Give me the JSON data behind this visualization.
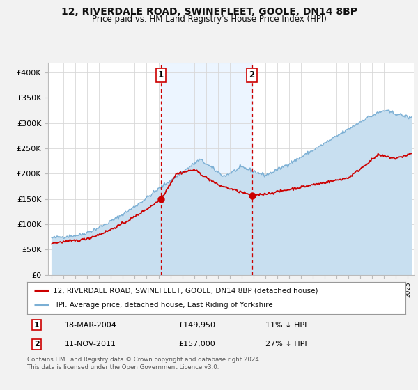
{
  "title": "12, RIVERDALE ROAD, SWINEFLEET, GOOLE, DN14 8BP",
  "subtitle": "Price paid vs. HM Land Registry's House Price Index (HPI)",
  "hpi_label": "HPI: Average price, detached house, East Riding of Yorkshire",
  "property_label": "12, RIVERDALE ROAD, SWINEFLEET, GOOLE, DN14 8BP (detached house)",
  "property_color": "#cc0000",
  "hpi_color": "#7bafd4",
  "hpi_fill_color": "#c8dff0",
  "shaded_color": "#ddeeff",
  "background_color": "#f2f2f2",
  "plot_bg_color": "#ffffff",
  "sale1_date": 2004.21,
  "sale1_price": 149950,
  "sale2_date": 2011.87,
  "sale2_price": 157000,
  "sale1_text": "18-MAR-2004",
  "sale1_price_text": "£149,950",
  "sale1_hpi_diff": "11% ↓ HPI",
  "sale2_text": "11-NOV-2011",
  "sale2_price_text": "£157,000",
  "sale2_hpi_diff": "27% ↓ HPI",
  "ylim": [
    0,
    420000
  ],
  "yticks": [
    0,
    50000,
    100000,
    150000,
    200000,
    250000,
    300000,
    350000,
    400000
  ],
  "ytick_labels": [
    "£0",
    "£50K",
    "£100K",
    "£150K",
    "£200K",
    "£250K",
    "£300K",
    "£350K",
    "£400K"
  ],
  "xlim_start": 1994.7,
  "xlim_end": 2025.5,
  "footer": "Contains HM Land Registry data © Crown copyright and database right 2024.\nThis data is licensed under the Open Government Licence v3.0."
}
